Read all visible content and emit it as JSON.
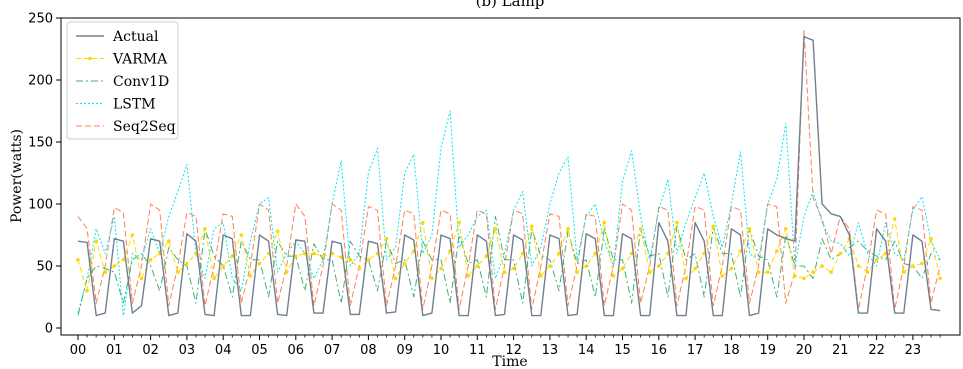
{
  "chart_data": {
    "type": "line",
    "title": "(b) Lamp",
    "xlabel": "Time",
    "ylabel": "Power(watts)",
    "ylim": [
      0,
      250
    ],
    "yticks": [
      0,
      50,
      100,
      150,
      200,
      250
    ],
    "x_ticklabels": [
      "00",
      "01",
      "02",
      "03",
      "04",
      "05",
      "06",
      "07",
      "08",
      "09",
      "10",
      "11",
      "12",
      "13",
      "14",
      "15",
      "16",
      "17",
      "18",
      "19",
      "20",
      "21",
      "22",
      "23"
    ],
    "points_per_hour": 4,
    "legend_position": "upper-left",
    "grid": false,
    "series": [
      {
        "name": "Actual",
        "color": "#708090",
        "dash": "",
        "marker": false,
        "values": [
          70,
          69,
          10,
          12,
          72,
          70,
          12,
          18,
          72,
          70,
          10,
          12,
          76,
          70,
          11,
          10,
          75,
          72,
          10,
          10,
          75,
          70,
          11,
          10,
          71,
          70,
          12,
          12,
          70,
          68,
          11,
          11,
          70,
          68,
          12,
          13,
          75,
          71,
          10,
          12,
          75,
          72,
          10,
          10,
          75,
          70,
          10,
          11,
          75,
          71,
          10,
          10,
          75,
          72,
          10,
          11,
          76,
          72,
          10,
          10,
          76,
          72,
          10,
          10,
          85,
          70,
          10,
          10,
          85,
          70,
          10,
          10,
          80,
          75,
          10,
          12,
          80,
          75,
          72,
          70,
          235,
          232,
          100,
          92,
          90,
          75,
          12,
          12,
          80,
          70,
          12,
          12,
          75,
          70,
          15,
          14
        ]
      },
      {
        "name": "VARMA",
        "color": "#ffd700",
        "dash": "5,3",
        "marker": true,
        "values": [
          55,
          30,
          70,
          45,
          50,
          55,
          75,
          40,
          55,
          60,
          70,
          45,
          52,
          60,
          80,
          40,
          50,
          58,
          75,
          42,
          52,
          60,
          78,
          45,
          58,
          60,
          60,
          58,
          60,
          57,
          55,
          48,
          55,
          60,
          72,
          40,
          52,
          62,
          85,
          40,
          48,
          62,
          85,
          42,
          50,
          58,
          80,
          45,
          48,
          60,
          82,
          42,
          50,
          60,
          80,
          45,
          50,
          60,
          85,
          42,
          48,
          60,
          80,
          45,
          50,
          60,
          85,
          40,
          48,
          60,
          82,
          42,
          48,
          62,
          80,
          45,
          45,
          62,
          80,
          42,
          40,
          45,
          50,
          45,
          60,
          72,
          50,
          45,
          55,
          60,
          88,
          45,
          50,
          52,
          72,
          40
        ]
      },
      {
        "name": "Conv1D",
        "color": "#3cb371",
        "dash": "7,3,2,3",
        "marker": false,
        "values": [
          10,
          40,
          50,
          48,
          45,
          20,
          55,
          60,
          50,
          30,
          65,
          55,
          50,
          20,
          80,
          58,
          50,
          25,
          70,
          55,
          55,
          25,
          70,
          58,
          58,
          30,
          68,
          55,
          55,
          20,
          70,
          58,
          55,
          30,
          70,
          52,
          55,
          25,
          70,
          55,
          55,
          20,
          75,
          52,
          55,
          25,
          90,
          55,
          55,
          20,
          80,
          58,
          55,
          30,
          78,
          52,
          55,
          25,
          80,
          55,
          55,
          20,
          80,
          58,
          60,
          25,
          82,
          55,
          60,
          25,
          82,
          60,
          60,
          25,
          80,
          58,
          55,
          25,
          75,
          50,
          50,
          40,
          72,
          55,
          60,
          65,
          70,
          62,
          58,
          55,
          70,
          52,
          50,
          40,
          60,
          55
        ]
      },
      {
        "name": "LSTM",
        "color": "#00e5ee",
        "dash": "2,2",
        "marker": false,
        "values": [
          12,
          40,
          80,
          60,
          90,
          10,
          60,
          55,
          80,
          60,
          90,
          110,
          132,
          60,
          40,
          80,
          85,
          40,
          30,
          70,
          100,
          105,
          45,
          60,
          70,
          60,
          40,
          55,
          100,
          135,
          50,
          60,
          125,
          145,
          55,
          65,
          125,
          140,
          60,
          75,
          145,
          175,
          65,
          75,
          90,
          95,
          40,
          60,
          95,
          110,
          50,
          65,
          100,
          125,
          138,
          55,
          90,
          100,
          70,
          50,
          118,
          143,
          90,
          55,
          95,
          120,
          60,
          85,
          105,
          125,
          90,
          65,
          100,
          142,
          60,
          55,
          100,
          120,
          165,
          50,
          90,
          110,
          85,
          70,
          68,
          58,
          85,
          60,
          50,
          85,
          60,
          55,
          95,
          106,
          70,
          55
        ]
      },
      {
        "name": "Seq2Seq",
        "color": "#ff7f50",
        "dash": "6,3",
        "marker": false,
        "values": [
          90,
          80,
          20,
          50,
          97,
          93,
          20,
          50,
          100,
          95,
          18,
          50,
          93,
          90,
          18,
          50,
          92,
          90,
          20,
          50,
          100,
          95,
          20,
          50,
          100,
          90,
          18,
          50,
          100,
          95,
          18,
          50,
          98,
          95,
          18,
          50,
          95,
          92,
          15,
          50,
          95,
          92,
          15,
          50,
          95,
          92,
          15,
          50,
          95,
          92,
          15,
          50,
          92,
          90,
          18,
          50,
          92,
          90,
          18,
          50,
          100,
          95,
          20,
          50,
          98,
          95,
          18,
          50,
          98,
          95,
          18,
          50,
          98,
          95,
          20,
          50,
          100,
          98,
          20,
          45,
          240,
          105,
          88,
          60,
          90,
          80,
          15,
          50,
          95,
          92,
          15,
          50,
          98,
          95,
          20,
          50
        ]
      }
    ]
  }
}
